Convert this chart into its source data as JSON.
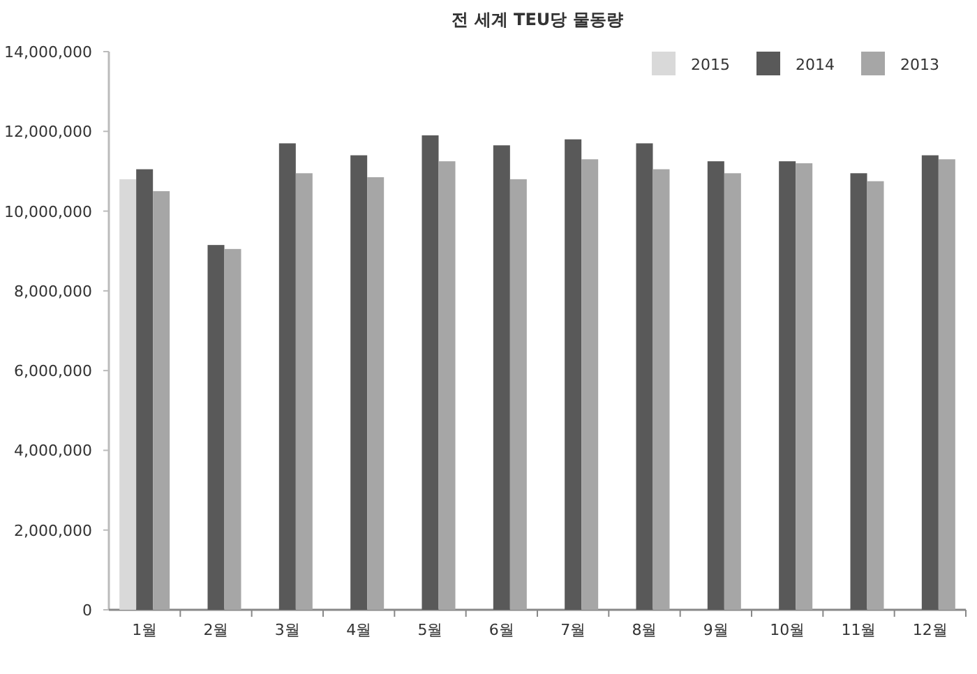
{
  "chart_data": {
    "type": "bar",
    "title": "전 세계 TEU당 물동량",
    "categories": [
      "1월",
      "2월",
      "3월",
      "4월",
      "5월",
      "6월",
      "7월",
      "8월",
      "9월",
      "10월",
      "11월",
      "12월"
    ],
    "series": [
      {
        "name": "2015",
        "color": "#d9d9d9",
        "values": [
          10800000,
          null,
          null,
          null,
          null,
          null,
          null,
          null,
          null,
          null,
          null,
          null
        ]
      },
      {
        "name": "2014",
        "color": "#595959",
        "values": [
          11050000,
          9150000,
          11700000,
          11400000,
          11900000,
          11650000,
          11800000,
          11700000,
          11250000,
          11250000,
          10950000,
          11400000
        ]
      },
      {
        "name": "2013",
        "color": "#a6a6a6",
        "values": [
          10500000,
          9050000,
          10950000,
          10850000,
          11250000,
          10800000,
          11300000,
          11050000,
          10950000,
          11200000,
          10750000,
          11300000
        ]
      }
    ],
    "ylim": [
      0,
      14000000
    ],
    "yticks": [
      {
        "value": 0,
        "label": "0"
      },
      {
        "value": 2000000,
        "label": "2,000,000"
      },
      {
        "value": 4000000,
        "label": "4,000,000"
      },
      {
        "value": 6000000,
        "label": "6,000,000"
      },
      {
        "value": 8000000,
        "label": "8,000,000"
      },
      {
        "value": 10000000,
        "label": "10,000,000"
      },
      {
        "value": 12000000,
        "label": "12,000,000"
      },
      {
        "value": 14000000,
        "label": "14,000,000"
      }
    ],
    "legend": "top right",
    "grid": false
  }
}
